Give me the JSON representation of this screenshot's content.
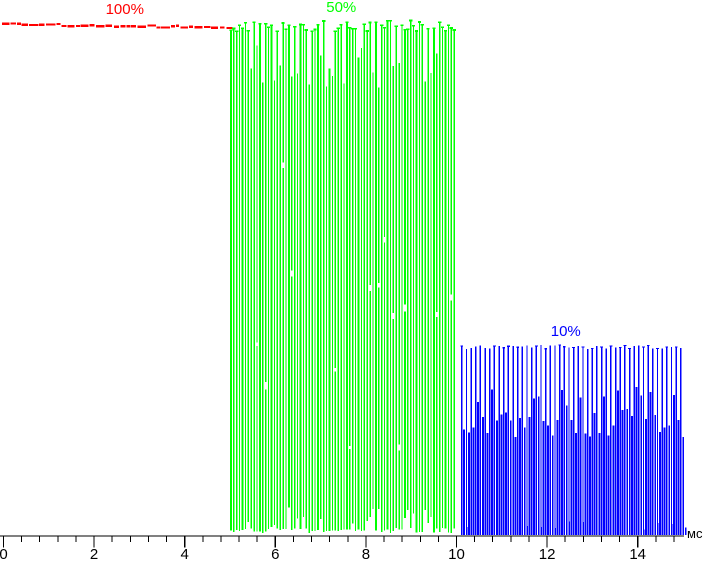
{
  "chart_data": {
    "type": "line",
    "subtype": "aliased-oscillogram",
    "title": "",
    "xlabel": "мс",
    "x_ticks": [
      "0",
      "2",
      "4",
      "6",
      "8",
      "10",
      "12",
      "14"
    ],
    "x_tick_values": [
      0,
      2,
      4,
      6,
      8,
      10,
      12,
      14
    ],
    "x_minor_step": 0.4,
    "x_range": [
      0,
      15.1
    ],
    "grid": "off",
    "legend": "inline labels above each burst",
    "axis_color": "#000000",
    "background_color": "#ffffff",
    "segments": [
      {
        "label": "100%",
        "color": "#ff0000",
        "t_start": 0,
        "t_end": 5,
        "waveform": "flat",
        "level_top": 1.0,
        "level_bottom": 1.0,
        "description": "constant full-level jittery dashed trace at top"
      },
      {
        "label": "50%",
        "color": "#00ff00",
        "t_start": 5,
        "t_end": 10,
        "waveform": "dense-oscillation",
        "level_top": 1.0,
        "level_bottom": 0.0,
        "description": "full-amplitude high-frequency burst rendered as dense vertical stripes"
      },
      {
        "label": "10%",
        "color": "#0000ff",
        "t_start": 10,
        "t_end": 15,
        "waveform": "dense-oscillation",
        "level_top": 0.37,
        "level_bottom": 0.0,
        "dense_band_top": 0.23,
        "description": "low-amplitude burst: thin spikes to ~37% with dense band below ~23%"
      }
    ]
  }
}
